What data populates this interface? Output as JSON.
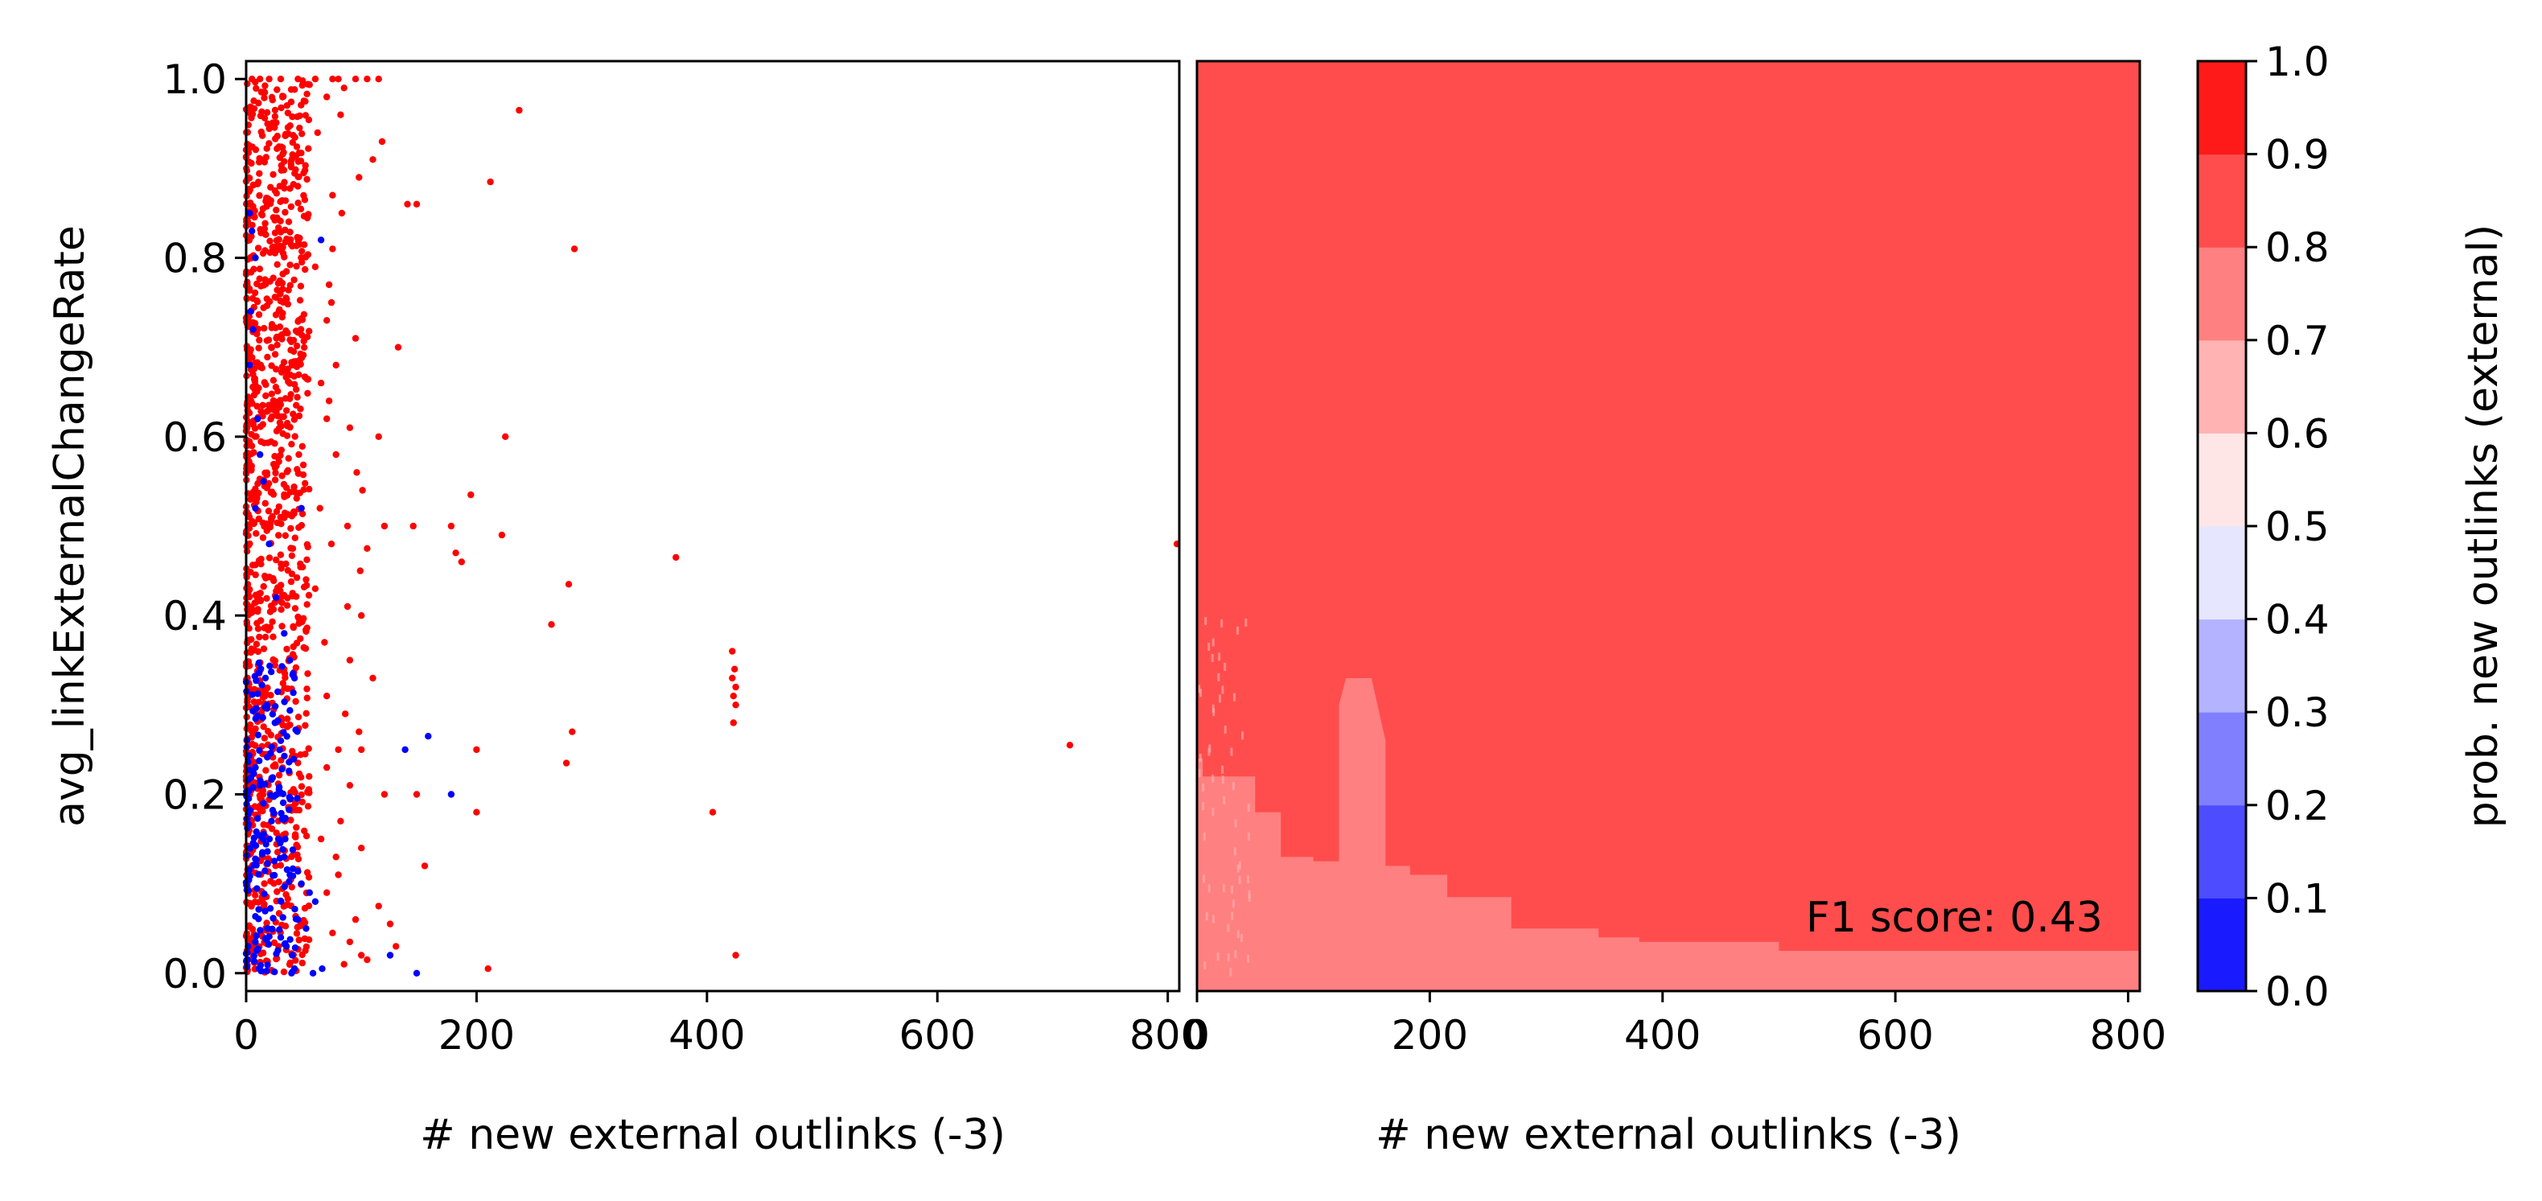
{
  "chart_data": [
    {
      "type": "scatter",
      "xlabel": "# new external outlinks (-3)",
      "ylabel": "avg_linkExternalChangeRate",
      "xlim": [
        0,
        810
      ],
      "ylim": [
        -0.02,
        1.02
      ],
      "x_ticks": [
        "0",
        "200",
        "400",
        "600",
        "800"
      ],
      "y_ticks": [
        "0.0",
        "0.2",
        "0.4",
        "0.6",
        "0.8",
        "1.0"
      ],
      "grid": false,
      "series": [
        {
          "color": "#ff0000",
          "points": [
            [
              5,
              1.0
            ],
            [
              12,
              1.0
            ],
            [
              20,
              1.0
            ],
            [
              30,
              1.0
            ],
            [
              45,
              1.0
            ],
            [
              60,
              1.0
            ],
            [
              75,
              1.0
            ],
            [
              80,
              1.0
            ],
            [
              95,
              1.0
            ],
            [
              105,
              1.0
            ],
            [
              115,
              1.0
            ],
            [
              85,
              0.99
            ],
            [
              70,
              0.98
            ],
            [
              82,
              0.96
            ],
            [
              62,
              0.94
            ],
            [
              118,
              0.93
            ],
            [
              110,
              0.91
            ],
            [
              98,
              0.89
            ],
            [
              75,
              0.87
            ],
            [
              83,
              0.85
            ],
            [
              140,
              0.86
            ],
            [
              148,
              0.86
            ],
            [
              212,
              0.885
            ],
            [
              237,
              0.965
            ],
            [
              285,
              0.81
            ],
            [
              75,
              0.81
            ],
            [
              60,
              0.79
            ],
            [
              72,
              0.77
            ],
            [
              74,
              0.75
            ],
            [
              70,
              0.73
            ],
            [
              95,
              0.71
            ],
            [
              132,
              0.7
            ],
            [
              78,
              0.68
            ],
            [
              65,
              0.66
            ],
            [
              72,
              0.64
            ],
            [
              70,
              0.62
            ],
            [
              90,
              0.61
            ],
            [
              115,
              0.6
            ],
            [
              225,
              0.6
            ],
            [
              78,
              0.58
            ],
            [
              96,
              0.56
            ],
            [
              101,
              0.54
            ],
            [
              195,
              0.535
            ],
            [
              64,
              0.52
            ],
            [
              88,
              0.5
            ],
            [
              120,
              0.5
            ],
            [
              145,
              0.5
            ],
            [
              178,
              0.5
            ],
            [
              222,
              0.49
            ],
            [
              74,
              0.48
            ],
            [
              105,
              0.475
            ],
            [
              182,
              0.47
            ],
            [
              187,
              0.46
            ],
            [
              99,
              0.45
            ],
            [
              280,
              0.435
            ],
            [
              60,
              0.43
            ],
            [
              88,
              0.41
            ],
            [
              100,
              0.4
            ],
            [
              265,
              0.39
            ],
            [
              68,
              0.37
            ],
            [
              90,
              0.35
            ],
            [
              110,
              0.33
            ],
            [
              70,
              0.31
            ],
            [
              86,
              0.29
            ],
            [
              98,
              0.27
            ],
            [
              283,
              0.27
            ],
            [
              80,
              0.25
            ],
            [
              100,
              0.25
            ],
            [
              200,
              0.25
            ],
            [
              278,
              0.235
            ],
            [
              70,
              0.23
            ],
            [
              90,
              0.21
            ],
            [
              120,
              0.2
            ],
            [
              148,
              0.2
            ],
            [
              200,
              0.18
            ],
            [
              405,
              0.18
            ],
            [
              82,
              0.17
            ],
            [
              65,
              0.15
            ],
            [
              100,
              0.14
            ],
            [
              78,
              0.13
            ],
            [
              155,
              0.12
            ],
            [
              80,
              0.11
            ],
            [
              70,
              0.09
            ],
            [
              115,
              0.075
            ],
            [
              95,
              0.06
            ],
            [
              125,
              0.055
            ],
            [
              75,
              0.045
            ],
            [
              90,
              0.035
            ],
            [
              130,
              0.03
            ],
            [
              100,
              0.02
            ],
            [
              105,
              0.015
            ],
            [
              85,
              0.01
            ],
            [
              210,
              0.005
            ],
            [
              373,
              0.465
            ],
            [
              422,
              0.36
            ],
            [
              424,
              0.34
            ],
            [
              422,
              0.33
            ],
            [
              425,
              0.32
            ],
            [
              423,
              0.31
            ],
            [
              425,
              0.3
            ],
            [
              423,
              0.28
            ],
            [
              425,
              0.02
            ],
            [
              715,
              0.255
            ],
            [
              808,
              0.48
            ]
          ],
          "dense_band": {
            "x_min": 0,
            "x_max": 55,
            "y_min": 0.0,
            "y_max": 1.0,
            "count": 1200
          }
        },
        {
          "color": "#0000ff",
          "points": [
            [
              3,
              0.85
            ],
            [
              5,
              0.83
            ],
            [
              8,
              0.8
            ],
            [
              4,
              0.74
            ],
            [
              6,
              0.72
            ],
            [
              3,
              0.68
            ],
            [
              10,
              0.62
            ],
            [
              12,
              0.58
            ],
            [
              15,
              0.55
            ],
            [
              8,
              0.52
            ],
            [
              48,
              0.52
            ],
            [
              65,
              0.82
            ],
            [
              20,
              0.48
            ],
            [
              26,
              0.42
            ],
            [
              33,
              0.38
            ],
            [
              38,
              0.35
            ],
            [
              42,
              0.33
            ],
            [
              18,
              0.3
            ],
            [
              25,
              0.28
            ],
            [
              30,
              0.26
            ],
            [
              8,
              0.23
            ],
            [
              12,
              0.21
            ],
            [
              15,
              0.19
            ],
            [
              22,
              0.17
            ],
            [
              28,
              0.15
            ],
            [
              33,
              0.13
            ],
            [
              38,
              0.11
            ],
            [
              48,
              0.1
            ],
            [
              55,
              0.09
            ],
            [
              60,
              0.08
            ],
            [
              45,
              0.06
            ],
            [
              52,
              0.05
            ],
            [
              30,
              0.04
            ],
            [
              35,
              0.03
            ],
            [
              40,
              0.02
            ],
            [
              125,
              0.02
            ],
            [
              148,
              0.0
            ],
            [
              138,
              0.25
            ],
            [
              158,
              0.265
            ],
            [
              178,
              0.2
            ],
            [
              58,
              0.0
            ],
            [
              42,
              0.005
            ],
            [
              66,
              0.005
            ]
          ],
          "dense_band": {
            "x_min": 0,
            "x_max": 45,
            "y_min": 0.0,
            "y_max": 0.35,
            "count": 180
          }
        }
      ]
    },
    {
      "type": "heatmap",
      "xlabel": "# new external outlinks (-3)",
      "xlim": [
        0,
        810
      ],
      "ylim": [
        -0.02,
        1.02
      ],
      "x_ticks": [
        "0",
        "200",
        "400",
        "600",
        "800"
      ],
      "annotation": "F1 score: 0.43",
      "base_level": "0.8–0.9",
      "regions": [
        {
          "level": "0.7–0.8",
          "polygon": [
            [
              0,
              -0.02
            ],
            [
              0,
              0.24
            ],
            [
              5,
              0.24
            ],
            [
              5,
              0.22
            ],
            [
              50,
              0.22
            ],
            [
              50,
              0.18
            ],
            [
              72,
              0.18
            ],
            [
              72,
              0.13
            ],
            [
              100,
              0.13
            ],
            [
              100,
              0.125
            ],
            [
              125,
              0.125
            ],
            [
              125,
              0.1
            ],
            [
              162,
              0.1
            ],
            [
              162,
              0.12
            ],
            [
              183,
              0.12
            ],
            [
              183,
              0.11
            ],
            [
              215,
              0.11
            ],
            [
              215,
              0.085
            ],
            [
              270,
              0.085
            ],
            [
              270,
              0.05
            ],
            [
              345,
              0.05
            ],
            [
              345,
              0.04
            ],
            [
              380,
              0.04
            ],
            [
              380,
              0.035
            ],
            [
              500,
              0.035
            ],
            [
              500,
              0.025
            ],
            [
              810,
              0.025
            ],
            [
              810,
              -0.02
            ]
          ]
        },
        {
          "level": "0.7–0.8",
          "polygon": [
            [
              122,
              0.07
            ],
            [
              122,
              0.3
            ],
            [
              128,
              0.33
            ],
            [
              150,
              0.33
            ],
            [
              155,
              0.3
            ],
            [
              162,
              0.26
            ],
            [
              162,
              0.07
            ]
          ]
        }
      ]
    },
    {
      "type": "colorbar",
      "label": "prob. new outlinks (external)",
      "tick_labels": [
        "0.0",
        "0.1",
        "0.2",
        "0.3",
        "0.4",
        "0.5",
        "0.6",
        "0.7",
        "0.8",
        "0.9",
        "1.0"
      ],
      "colors": [
        "#1a1aff",
        "#4d4dff",
        "#8080ff",
        "#b3b3ff",
        "#e6e6ff",
        "#ffe6e6",
        "#ffb3b3",
        "#ff8080",
        "#ff4d4d",
        "#ff1a1a"
      ]
    }
  ]
}
